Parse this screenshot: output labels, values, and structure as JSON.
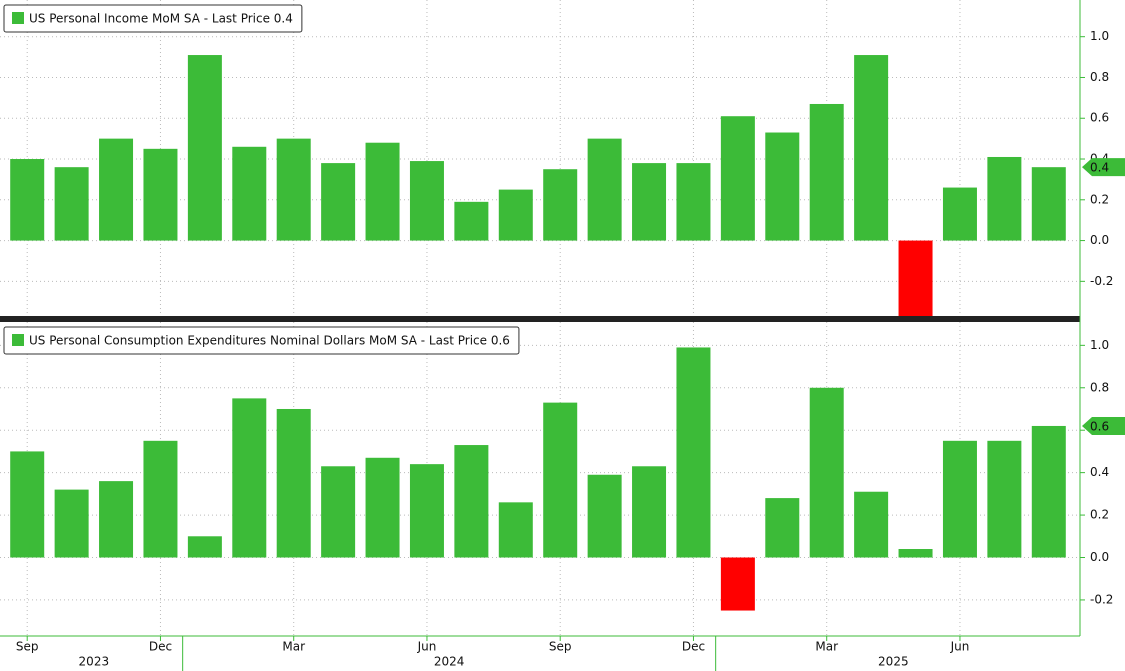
{
  "chart_data": [
    {
      "type": "bar",
      "title": "US Personal Income MoM SA - Last Price 0.4",
      "values": [
        0.4,
        0.36,
        0.5,
        0.45,
        0.91,
        0.46,
        0.5,
        0.38,
        0.48,
        0.39,
        0.19,
        0.25,
        0.35,
        0.5,
        0.38,
        0.38,
        0.61,
        0.53,
        0.67,
        0.91,
        -0.4,
        0.26,
        0.41,
        0.36
      ],
      "last_value_label": "0.4",
      "color": "#3cbb38",
      "negative_color": "#ff0000",
      "ylim": [
        -0.37,
        1.18
      ],
      "yticks": [
        {
          "value": 1,
          "label": "1.0"
        },
        0.8,
        0.6,
        0.4,
        0.2,
        {
          "value": 0,
          "label": "0.0"
        },
        -0.2
      ],
      "grid": true
    },
    {
      "type": "bar",
      "title": "US Personal Consumption Expenditures Nominal Dollars MoM SA - Last Price 0.6",
      "categories": [
        "Sep",
        null,
        null,
        "Dec",
        null,
        null,
        "Mar",
        null,
        null,
        "Jun",
        null,
        null,
        "Sep",
        null,
        null,
        "Dec",
        null,
        null,
        "Mar",
        null,
        null,
        "Jun",
        null,
        null
      ],
      "x_groups": [
        {
          "label": "2023",
          "from": 0,
          "to": 3
        },
        {
          "label": "2024",
          "from": 4,
          "to": 15
        },
        {
          "label": "2025",
          "from": 16,
          "to": 23
        }
      ],
      "values": [
        0.5,
        0.32,
        0.36,
        0.55,
        0.1,
        0.75,
        0.7,
        0.43,
        0.47,
        0.44,
        0.53,
        0.26,
        0.73,
        0.39,
        0.43,
        0.99,
        -0.25,
        0.28,
        0.8,
        0.31,
        0.04,
        0.55,
        0.55,
        0.62
      ],
      "last_value_label": "0.6",
      "color": "#3cbb38",
      "negative_color": "#ff0000",
      "ylim": [
        -0.37,
        1.11
      ],
      "yticks": [
        {
          "value": 1,
          "label": "1.0"
        },
        0.8,
        0.6,
        0.4,
        0.2,
        {
          "value": 0,
          "label": "0.0"
        },
        -0.2
      ],
      "grid": true
    }
  ]
}
